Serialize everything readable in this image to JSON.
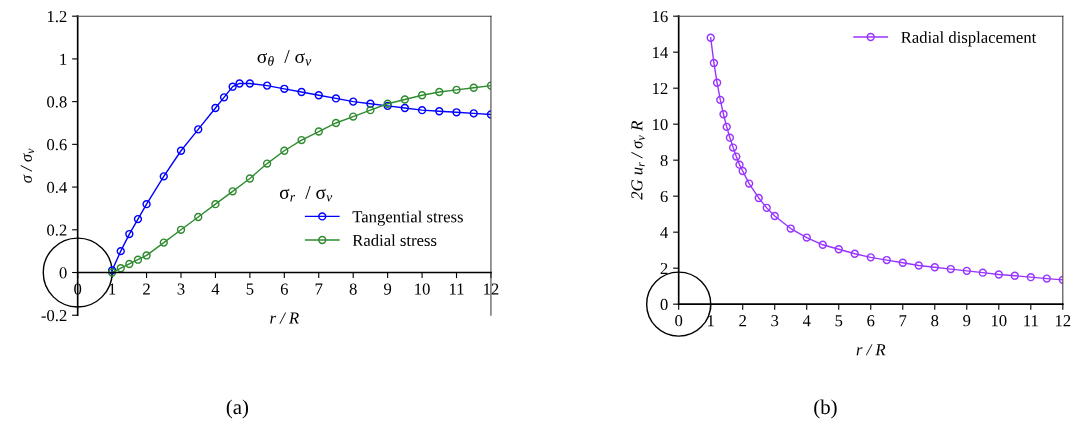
{
  "chart_data": [
    {
      "type": "line",
      "xlabel": "r / R",
      "ylabel": "σ / σ$_{v}$",
      "xlim": [
        0,
        12
      ],
      "ylim": [
        -0.2,
        1.2
      ],
      "xticks": [
        0,
        1,
        2,
        3,
        4,
        5,
        6,
        7,
        8,
        9,
        10,
        11,
        12
      ],
      "yticks": [
        -0.2,
        0,
        0.2,
        0.4,
        0.6,
        0.8,
        1,
        1.2
      ],
      "marker": "circle",
      "legend": "lower right",
      "series": [
        {
          "name": "Tangential stress",
          "color": "#0000ff",
          "x": [
            1,
            1.25,
            1.5,
            1.75,
            2,
            2.5,
            3,
            3.5,
            4,
            4.25,
            4.5,
            4.7,
            5,
            5.5,
            6,
            6.5,
            7,
            7.5,
            8,
            8.5,
            9,
            9.5,
            10,
            10.5,
            11,
            11.5,
            12
          ],
          "values": [
            0.01,
            0.1,
            0.18,
            0.25,
            0.32,
            0.45,
            0.57,
            0.67,
            0.77,
            0.82,
            0.87,
            0.885,
            0.885,
            0.875,
            0.86,
            0.845,
            0.83,
            0.815,
            0.8,
            0.79,
            0.78,
            0.77,
            0.76,
            0.755,
            0.75,
            0.745,
            0.74
          ]
        },
        {
          "name": "Radial stress",
          "color": "#2e8b2e",
          "x": [
            1,
            1.25,
            1.5,
            1.75,
            2,
            2.5,
            3,
            3.5,
            4,
            4.5,
            5,
            5.5,
            6,
            6.5,
            7,
            7.5,
            8,
            8.5,
            9,
            9.5,
            10,
            10.5,
            11,
            11.5,
            12
          ],
          "values": [
            0,
            0.02,
            0.04,
            0.06,
            0.08,
            0.14,
            0.2,
            0.26,
            0.32,
            0.38,
            0.44,
            0.51,
            0.57,
            0.62,
            0.66,
            0.7,
            0.73,
            0.76,
            0.79,
            0.81,
            0.83,
            0.845,
            0.855,
            0.865,
            0.875
          ]
        }
      ],
      "annotations": [
        {
          "text": "σ$_{θ}$  / σ$_{v}$",
          "x": 6,
          "y": 0.86
        },
        {
          "text": "σ$_{r}$  / σ$_{v}$",
          "x": 5.5,
          "y": 0.51
        },
        "(a)"
      ]
    },
    {
      "type": "line",
      "xlabel": "r / R",
      "ylabel": "2G u$_{r}$ / σ$_{v}$ R",
      "xlim": [
        0,
        12
      ],
      "ylim": [
        0,
        16
      ],
      "xticks": [
        0,
        1,
        2,
        3,
        4,
        5,
        6,
        7,
        8,
        9,
        10,
        11,
        12
      ],
      "yticks": [
        0,
        2,
        4,
        6,
        8,
        10,
        12,
        14,
        16
      ],
      "marker": "circle",
      "legend": "upper right",
      "series": [
        {
          "name": "Radial displacement",
          "color": "#9933ff",
          "x": [
            1,
            1.1,
            1.2,
            1.3,
            1.4,
            1.5,
            1.6,
            1.7,
            1.8,
            1.9,
            2,
            2.2,
            2.5,
            2.75,
            3,
            3.5,
            4,
            4.5,
            5,
            5.5,
            6,
            6.5,
            7,
            7.5,
            8,
            8.5,
            9,
            9.5,
            10,
            10.5,
            11,
            11.5,
            12
          ],
          "values": [
            14.8,
            13.4,
            12.3,
            11.35,
            10.55,
            9.85,
            9.25,
            8.7,
            8.2,
            7.75,
            7.4,
            6.7,
            5.9,
            5.35,
            4.9,
            4.2,
            3.7,
            3.3,
            3.05,
            2.8,
            2.6,
            2.45,
            2.3,
            2.15,
            2.05,
            1.95,
            1.85,
            1.75,
            1.65,
            1.58,
            1.5,
            1.42,
            1.35
          ]
        }
      ],
      "annotations": [
        "(b)"
      ]
    }
  ]
}
